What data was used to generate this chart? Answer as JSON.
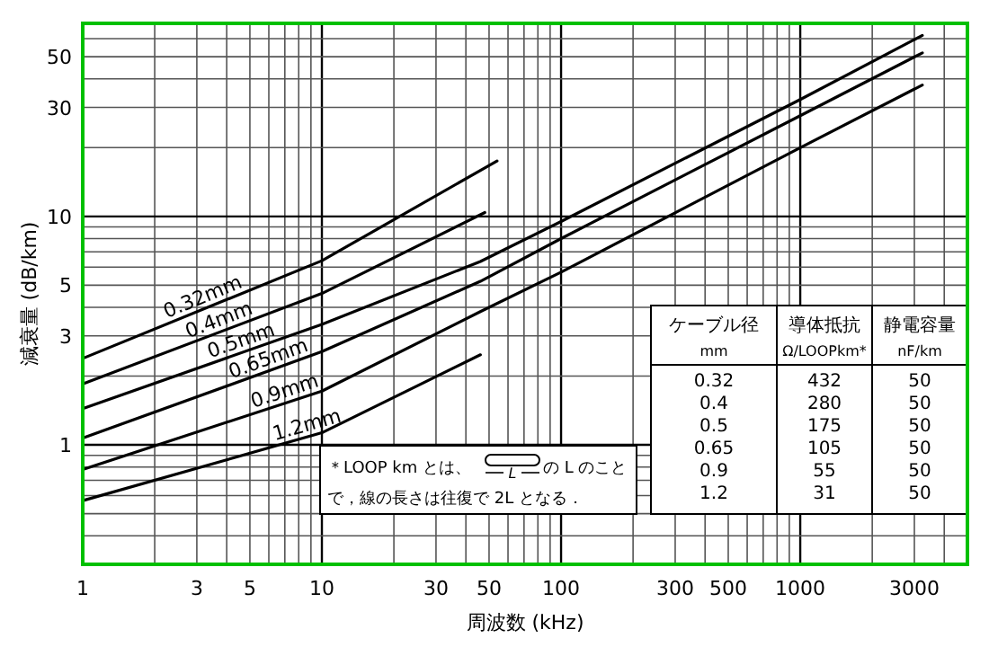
{
  "chart_data": {
    "type": "line",
    "xlabel": "周波数 (kHz)",
    "ylabel": "減衰量 (dB/km)",
    "log": "xy",
    "xlim": [
      1,
      5000
    ],
    "ylim": [
      0.3,
      70
    ],
    "xticks": [
      1,
      3,
      5,
      10,
      30,
      50,
      100,
      300,
      500,
      1000,
      3000
    ],
    "yticks": [
      1,
      3,
      5,
      10,
      30,
      50
    ],
    "grid": true,
    "series": [
      {
        "name": "0.32mm",
        "color": "#000000",
        "x": [
          1,
          10,
          54
        ],
        "values": [
          2.39,
          6.4,
          17.5
        ]
      },
      {
        "name": "0.4mm",
        "color": "#000000",
        "x": [
          1,
          10,
          48
        ],
        "values": [
          1.85,
          4.6,
          10.4
        ]
      },
      {
        "name": "0.5mm",
        "color": "#000000",
        "x": [
          1,
          10,
          46,
          100,
          1000,
          3240
        ],
        "values": [
          1.44,
          3.37,
          6.35,
          9.5,
          32.5,
          62
        ]
      },
      {
        "name": "0.65mm",
        "color": "#000000",
        "x": [
          1,
          10,
          46,
          100,
          1000,
          3240
        ],
        "values": [
          1.07,
          2.56,
          5.2,
          8.0,
          27.6,
          52
        ]
      },
      {
        "name": "0.9mm",
        "color": "#000000",
        "x": [
          1,
          10,
          46,
          100,
          1000,
          3240
        ],
        "values": [
          0.78,
          1.72,
          3.83,
          5.7,
          20,
          37.6
        ]
      },
      {
        "name": "1.2mm",
        "color": "#000000",
        "x": [
          1,
          10,
          46
        ],
        "values": [
          0.57,
          1.13,
          2.48
        ]
      }
    ],
    "annotations": [
      "ケーブル径",
      "導体抵抗",
      "静電容量",
      "mm",
      "Ω/LOOPkm*",
      "nF/km",
      "0.32",
      "432",
      "50",
      "0.4",
      "280",
      "50",
      "0.5",
      "175",
      "50",
      "0.65",
      "105",
      "50",
      "0.9",
      "55",
      "50",
      "1.2",
      "31",
      "50",
      "＊LOOP km とは、",
      "L",
      "の L のこと",
      "で，線の長さは往復で 2L となる．"
    ]
  }
}
